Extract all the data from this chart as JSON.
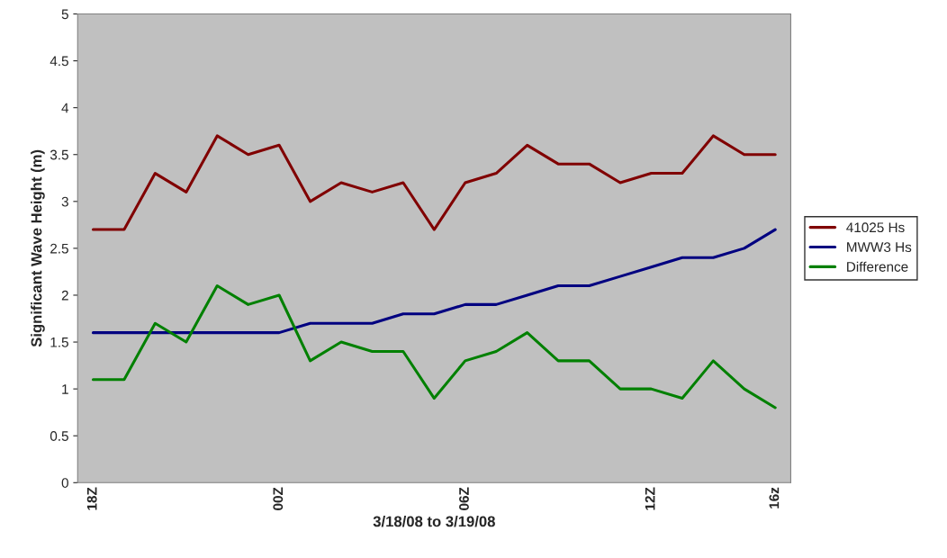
{
  "chart_data": {
    "type": "line",
    "xlabel": "3/18/08 to 3/19/08",
    "ylabel": "Significant Wave Height (m)",
    "categories": [
      "18Z",
      null,
      null,
      null,
      null,
      null,
      "00Z",
      null,
      null,
      null,
      null,
      null,
      "06Z",
      null,
      null,
      null,
      null,
      null,
      "12Z",
      null,
      null,
      null,
      "16z"
    ],
    "series": [
      {
        "name": "41025 Hs",
        "color": "#800000",
        "values": [
          2.7,
          2.7,
          3.3,
          3.1,
          3.7,
          3.5,
          3.6,
          3.0,
          3.2,
          3.1,
          3.2,
          2.7,
          3.2,
          3.3,
          3.6,
          3.4,
          3.4,
          3.2,
          3.3,
          3.3,
          3.7,
          3.5,
          3.5
        ]
      },
      {
        "name": "MWW3 Hs",
        "color": "#000080",
        "values": [
          1.6,
          1.6,
          1.6,
          1.6,
          1.6,
          1.6,
          1.6,
          1.7,
          1.7,
          1.7,
          1.8,
          1.8,
          1.9,
          1.9,
          2.0,
          2.1,
          2.1,
          2.2,
          2.3,
          2.4,
          2.4,
          2.5,
          2.7
        ]
      },
      {
        "name": "Difference",
        "color": "#008000",
        "values": [
          1.1,
          1.1,
          1.7,
          1.5,
          2.1,
          1.9,
          2.0,
          1.3,
          1.5,
          1.4,
          1.4,
          0.9,
          1.3,
          1.4,
          1.6,
          1.3,
          1.3,
          1.0,
          1.0,
          0.9,
          1.3,
          1.0,
          0.8
        ]
      }
    ],
    "ylim": [
      0,
      5
    ],
    "yticks": [
      0,
      0.5,
      1,
      1.5,
      2,
      2.5,
      3,
      3.5,
      4,
      4.5,
      5
    ],
    "grid": false,
    "legend": "right",
    "marker": "none",
    "line_style": "solid"
  }
}
